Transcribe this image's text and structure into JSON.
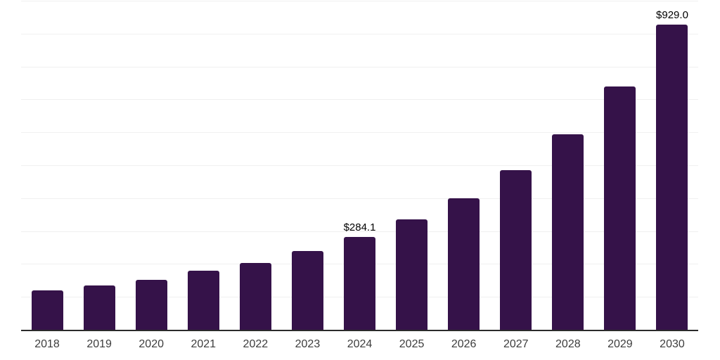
{
  "chart_data": {
    "type": "bar",
    "title": "",
    "xlabel": "",
    "ylabel": "",
    "categories": [
      "2018",
      "2019",
      "2020",
      "2021",
      "2022",
      "2023",
      "2024",
      "2025",
      "2026",
      "2027",
      "2028",
      "2029",
      "2030"
    ],
    "values": [
      122,
      137,
      154,
      181,
      206,
      241,
      284.1,
      337,
      402,
      487,
      597,
      741,
      929.0
    ],
    "value_labels": [
      "",
      "",
      "",
      "",
      "",
      "",
      "$284.1",
      "",
      "",
      "",
      "",
      "",
      "$929.0"
    ],
    "ylim": [
      0,
      1000
    ],
    "grid": true,
    "gridline_values": [
      100,
      200,
      300,
      400,
      500,
      600,
      700,
      800,
      900,
      1000
    ],
    "legend": false,
    "colors": {
      "bar": "#351249",
      "gridline": "#f0f0f0",
      "axis_line": "#2b2b2b",
      "tick_label": "#3d3d3d",
      "data_label": "#000000",
      "background": "#ffffff"
    }
  }
}
